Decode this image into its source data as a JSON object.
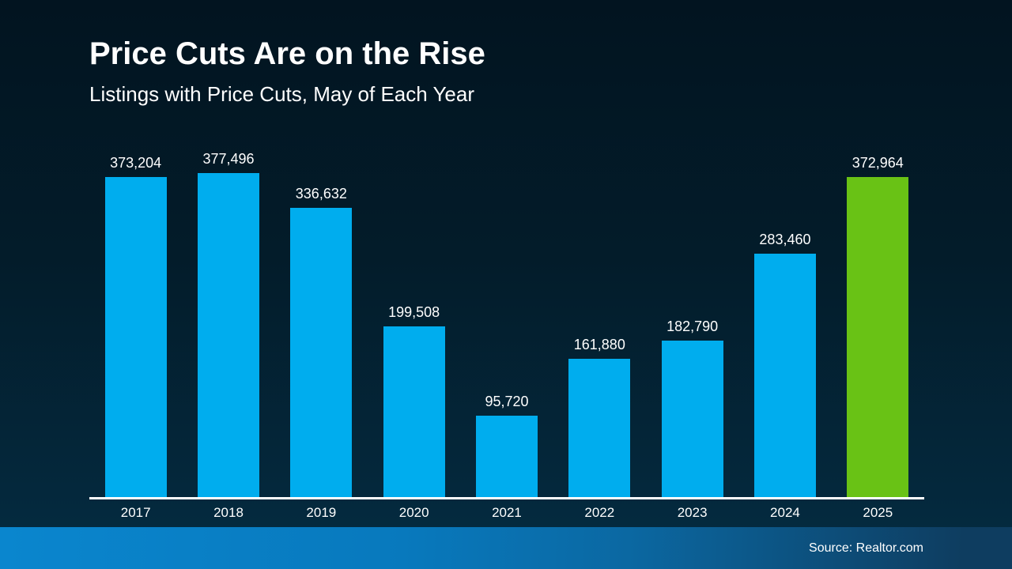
{
  "header": {
    "title": "Price Cuts Are on the Rise",
    "subtitle": "Listings with Price Cuts, May of Each Year"
  },
  "chart_data": {
    "type": "bar",
    "title": "Price Cuts Are on the Rise",
    "subtitle": "Listings with Price Cuts, May of Each Year",
    "categories": [
      "2017",
      "2018",
      "2019",
      "2020",
      "2021",
      "2022",
      "2023",
      "2024",
      "2025"
    ],
    "values": [
      373204,
      377496,
      336632,
      199508,
      95720,
      161880,
      182790,
      283460,
      372964
    ],
    "value_labels": [
      "373,204",
      "377,496",
      "336,632",
      "199,508",
      "95,720",
      "161,880",
      "182,790",
      "283,460",
      "372,964"
    ],
    "xlabel": "",
    "ylabel": "",
    "ylim": [
      0,
      377496
    ],
    "grid": false,
    "legend": false,
    "bar_color": "#00ADEE",
    "highlight_color": "#69C215",
    "highlight_index": 8,
    "axis_line_color": "#FFFFFF",
    "label_color": "#FFFFFF"
  },
  "footer": {
    "source": "Source: Realtor.com"
  },
  "colors": {
    "background_top": "#021420",
    "background_bottom": "#042C42",
    "footer_gradient_left": "#0A86CE",
    "footer_gradient_right": "#0E3D60",
    "text": "#FFFFFF"
  }
}
